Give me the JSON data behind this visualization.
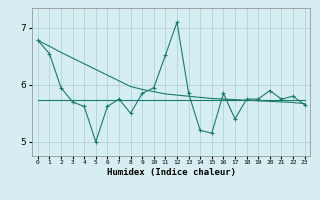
{
  "x": [
    0,
    1,
    2,
    3,
    4,
    5,
    6,
    7,
    8,
    9,
    10,
    11,
    12,
    13,
    14,
    15,
    16,
    17,
    18,
    19,
    20,
    21,
    22,
    23
  ],
  "zigzag_y": [
    6.78,
    6.55,
    5.95,
    5.7,
    5.62,
    5.0,
    5.62,
    5.75,
    5.5,
    5.85,
    5.95,
    6.52,
    7.1,
    5.85,
    5.2,
    5.15,
    5.85,
    5.4,
    5.75,
    5.75,
    5.9,
    5.75,
    5.8,
    5.65
  ],
  "trend_y": [
    6.78,
    6.68,
    6.57,
    6.47,
    6.37,
    6.27,
    6.17,
    6.07,
    5.97,
    5.92,
    5.88,
    5.84,
    5.82,
    5.8,
    5.78,
    5.76,
    5.75,
    5.74,
    5.73,
    5.72,
    5.71,
    5.7,
    5.69,
    5.67
  ],
  "avg_y": [
    5.73,
    5.73,
    5.73,
    5.73,
    5.73,
    5.73,
    5.73,
    5.73,
    5.73,
    5.73,
    5.73,
    5.73,
    5.73,
    5.73,
    5.73,
    5.73,
    5.73,
    5.73,
    5.73,
    5.73,
    5.73,
    5.73,
    5.73,
    5.73
  ],
  "line_color": "#1a7a6e",
  "bg_color": "#d6eef2",
  "grid_color": "#aed4da",
  "xlabel": "Humidex (Indice chaleur)",
  "xlim": [
    -0.5,
    23.5
  ],
  "ylim": [
    4.75,
    7.35
  ],
  "yticks": [
    5,
    6,
    7
  ],
  "xtick_labels": [
    "0",
    "1",
    "2",
    "3",
    "4",
    "5",
    "6",
    "7",
    "8",
    "9",
    "10",
    "11",
    "12",
    "13",
    "14",
    "15",
    "16",
    "17",
    "18",
    "19",
    "20",
    "21",
    "22",
    "23"
  ]
}
